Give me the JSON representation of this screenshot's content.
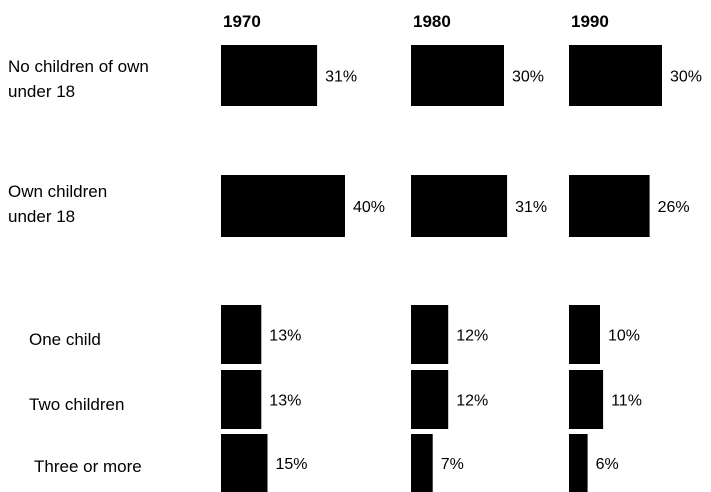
{
  "chart_data": {
    "type": "bar",
    "title": "",
    "xlabel": "",
    "ylabel": "",
    "orientation": "horizontal",
    "unit": "%",
    "groups": [
      "1970",
      "1980",
      "1990"
    ],
    "categories": [
      "No children of own under 18",
      "Own children under 18",
      "One child",
      "Two children",
      "Three or more"
    ],
    "series": [
      {
        "name": "1970",
        "values": [
          31,
          40,
          13,
          13,
          15
        ],
        "labels": [
          "31%",
          "40%",
          "13%",
          "13%",
          "15%"
        ]
      },
      {
        "name": "1980",
        "values": [
          30,
          31,
          12,
          12,
          7
        ],
        "labels": [
          "30%",
          "31%",
          "12%",
          "12%",
          "7%"
        ]
      },
      {
        "name": "1990",
        "values": [
          30,
          26,
          10,
          11,
          6
        ],
        "labels": [
          "30%",
          "26%",
          "10%",
          "11%",
          "6%"
        ]
      }
    ],
    "bar_color": "#000000",
    "grid": false,
    "legend": "none"
  }
}
